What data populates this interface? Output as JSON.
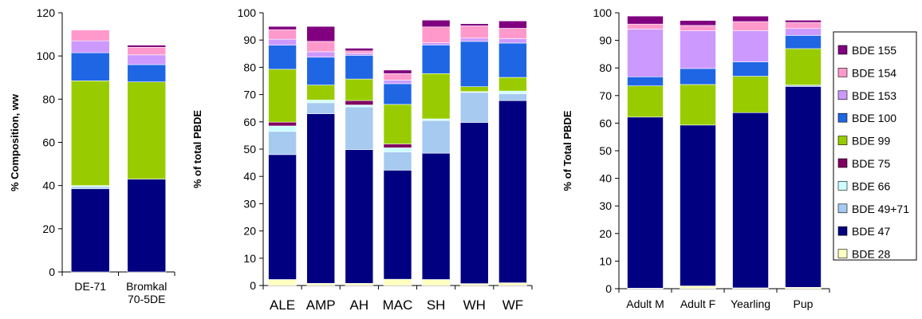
{
  "series_colors": {
    "BDE 28": "#ffffc0",
    "BDE 47": "#000080",
    "BDE 49+71": "#a6caf0",
    "BDE 66": "#ccffff",
    "BDE 75": "#800060",
    "BDE 99": "#99cc00",
    "BDE 100": "#1f66e5",
    "BDE 153": "#cc99ff",
    "BDE 154": "#ff99cc",
    "BDE 155": "#800080"
  },
  "legend": {
    "items": [
      "BDE 155",
      "BDE 154",
      "BDE 153",
      "BDE 100",
      "BDE 99",
      "BDE 75",
      "BDE 66",
      "BDE 49+71",
      "BDE 47",
      "BDE 28"
    ]
  },
  "chart_data": [
    {
      "type": "bar",
      "stacked": true,
      "ylabel": "% Composition, ww",
      "ylim": [
        0,
        120
      ],
      "yticks": [
        0,
        20,
        40,
        60,
        80,
        100,
        120
      ],
      "categories": [
        [
          "DE-71"
        ],
        [
          "Bromkal",
          "70-5DE"
        ]
      ],
      "series": [
        {
          "name": "BDE 28",
          "values": [
            0,
            0
          ]
        },
        {
          "name": "BDE 47",
          "values": [
            38.5,
            43
          ]
        },
        {
          "name": "BDE 49+71",
          "values": [
            1,
            0
          ]
        },
        {
          "name": "BDE 66",
          "values": [
            0.5,
            0
          ]
        },
        {
          "name": "BDE 75",
          "values": [
            0,
            0
          ]
        },
        {
          "name": "BDE 99",
          "values": [
            48.5,
            45
          ]
        },
        {
          "name": "BDE 100",
          "values": [
            13,
            8
          ]
        },
        {
          "name": "BDE 153",
          "values": [
            5.5,
            4.5
          ]
        },
        {
          "name": "BDE 154",
          "values": [
            5,
            3.5
          ]
        },
        {
          "name": "BDE 155",
          "values": [
            0,
            1
          ]
        }
      ]
    },
    {
      "type": "bar",
      "stacked": true,
      "ylabel": "% of total PBDE",
      "ylim": [
        0,
        100
      ],
      "yticks": [
        0,
        10,
        20,
        30,
        40,
        50,
        60,
        70,
        80,
        90,
        100
      ],
      "categories": [
        [
          "ALE"
        ],
        [
          "AMP"
        ],
        [
          "AH"
        ],
        [
          "MAC"
        ],
        [
          "SH"
        ],
        [
          "WH"
        ],
        [
          "WF"
        ]
      ],
      "series": [
        {
          "name": "BDE 28",
          "values": [
            2.2,
            0.8,
            0.8,
            2.3,
            2.2,
            0.7,
            1.0
          ]
        },
        {
          "name": "BDE 47",
          "values": [
            45.8,
            62.2,
            49,
            40,
            46.3,
            59.1,
            66.8
          ]
        },
        {
          "name": "BDE 49+71",
          "values": [
            8.5,
            4,
            15.7,
            6.7,
            12,
            11,
            2.5
          ]
        },
        {
          "name": "BDE 66",
          "values": [
            2,
            1,
            0.7,
            1.5,
            0.6,
            0.3,
            1.0
          ]
        },
        {
          "name": "BDE 75",
          "values": [
            1.4,
            0,
            1.6,
            1.4,
            0,
            0,
            0
          ]
        },
        {
          "name": "BDE 99",
          "values": [
            19.4,
            5.5,
            7.9,
            14.5,
            16.6,
            1.8,
            5.0
          ]
        },
        {
          "name": "BDE 100",
          "values": [
            8.8,
            10.2,
            8.7,
            7.6,
            10.5,
            16.6,
            12.6
          ]
        },
        {
          "name": "BDE 153",
          "values": [
            2.2,
            2,
            0.7,
            1.3,
            0.8,
            1.2,
            1.6
          ]
        },
        {
          "name": "BDE 154",
          "values": [
            3.5,
            3.8,
            0.9,
            2.4,
            5.8,
            4.5,
            3.8
          ]
        },
        {
          "name": "BDE 155",
          "values": [
            1.2,
            5.5,
            1,
            1.3,
            2.5,
            0.8,
            2.7
          ]
        }
      ]
    },
    {
      "type": "bar",
      "stacked": true,
      "ylabel": "% of Total PBDE",
      "ylim": [
        0,
        100
      ],
      "yticks": [
        0,
        10,
        20,
        30,
        40,
        50,
        60,
        70,
        80,
        90,
        100
      ],
      "categories": [
        [
          "Adult M"
        ],
        [
          "Adult F"
        ],
        [
          "Yearling"
        ],
        [
          "Pup"
        ]
      ],
      "series": [
        {
          "name": "BDE 28",
          "values": [
            0.2,
            1.0,
            0.3,
            0.5
          ]
        },
        {
          "name": "BDE 47",
          "values": [
            62,
            58.3,
            63.5,
            72.8
          ]
        },
        {
          "name": "BDE 49+71",
          "values": [
            0,
            0,
            0,
            0.5
          ]
        },
        {
          "name": "BDE 66",
          "values": [
            0,
            0,
            0,
            0
          ]
        },
        {
          "name": "BDE 75",
          "values": [
            0,
            0,
            0,
            0
          ]
        },
        {
          "name": "BDE 99",
          "values": [
            11.3,
            14.7,
            13.2,
            13.2
          ]
        },
        {
          "name": "BDE 100",
          "values": [
            3.3,
            5.8,
            5.2,
            4.8
          ]
        },
        {
          "name": "BDE 153",
          "values": [
            17.3,
            13.7,
            11.3,
            2.5
          ]
        },
        {
          "name": "BDE 154",
          "values": [
            1.8,
            1.9,
            3.3,
            2.2
          ]
        },
        {
          "name": "BDE 155",
          "values": [
            2.9,
            1.8,
            2.0,
            0.8
          ]
        }
      ]
    }
  ]
}
